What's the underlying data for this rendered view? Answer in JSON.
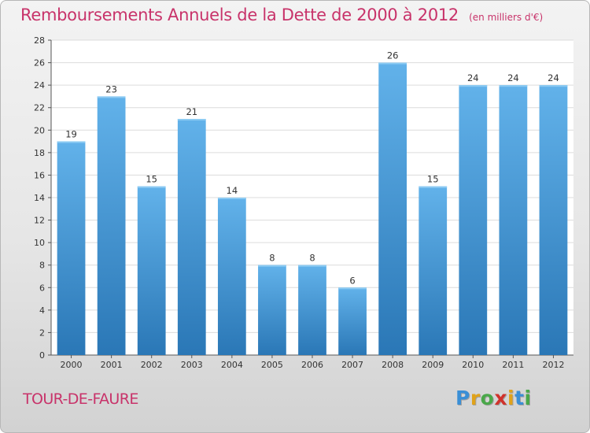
{
  "title": "Remboursements Annuels de la Dette de 2000 à 2012",
  "subtitle": "(en milliers d'€)",
  "commune": "TOUR-DE-FAURE",
  "logo": {
    "letters": [
      "P",
      "r",
      "o",
      "x",
      "i",
      "t",
      "i"
    ],
    "colors": [
      "#3a8fd6",
      "#e0a21a",
      "#4aa84a",
      "#d0322b",
      "#e0a21a",
      "#3a8fd6",
      "#4aa84a"
    ]
  },
  "colors": {
    "title": "#c8336a",
    "bar_top": "#62b2ea",
    "bar_bottom": "#2a77b6"
  },
  "chart_data": {
    "type": "bar",
    "categories": [
      "2000",
      "2001",
      "2002",
      "2003",
      "2004",
      "2005",
      "2006",
      "2007",
      "2008",
      "2009",
      "2010",
      "2011",
      "2012"
    ],
    "values": [
      19,
      23,
      15,
      21,
      14,
      8,
      8,
      6,
      26,
      15,
      24,
      24,
      24
    ],
    "title": "Remboursements Annuels de la Dette de 2000 à 2012",
    "xlabel": "",
    "ylabel": "",
    "ylim": [
      0,
      28
    ],
    "yticks": [
      0,
      2,
      4,
      6,
      8,
      10,
      12,
      14,
      16,
      18,
      20,
      22,
      24,
      26,
      28
    ],
    "grid": true,
    "data_labels": true
  }
}
